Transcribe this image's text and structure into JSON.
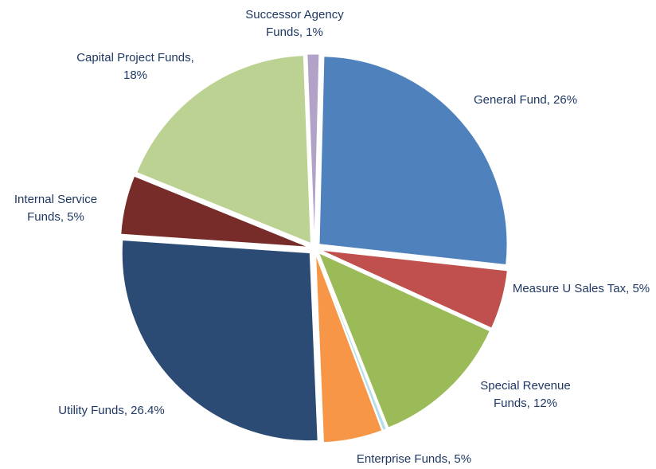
{
  "chart_data": {
    "type": "pie",
    "categories": [
      "General Fund, 26%",
      "Measure U Sales Tax, 5%",
      "Special Revenue Funds, 12%",
      null,
      "Enterprise Funds, 5%",
      "Utility Funds, 26.4%",
      "Internal Service Funds, 5%",
      "Capital Project Funds, 18%",
      "Successor Agency Funds, 1%"
    ],
    "values": [
      26,
      5,
      12,
      0.3,
      5,
      26.4,
      5,
      18,
      1
    ],
    "colors": [
      "#4f81bd",
      "#c0504d",
      "#9bbb59",
      "#b7dde8",
      "#f79646",
      "#2b4a74",
      "#772c2a",
      "#bcd292",
      "#b3a2c7"
    ]
  }
}
